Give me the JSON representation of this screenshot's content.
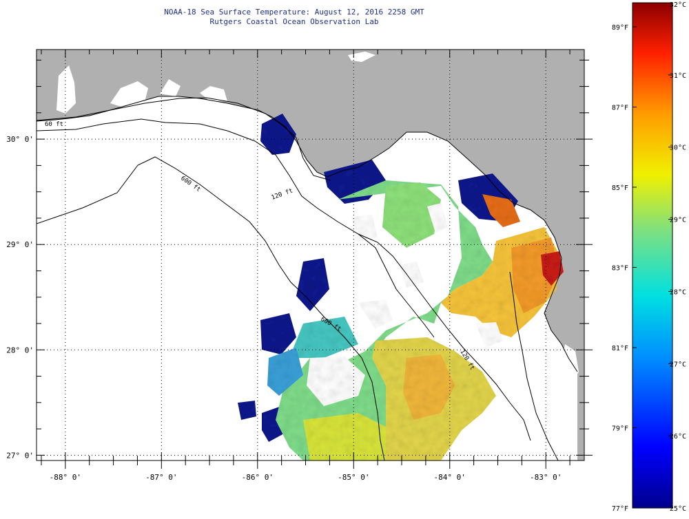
{
  "title": {
    "line1": "NOAA-18 Sea Surface Temperature:  August 12, 2016 2258 GMT",
    "line2": "Rutgers Coastal Ocean Observation Lab"
  },
  "colors": {
    "land": "#b0b0b0",
    "no_data": "#ffffff",
    "grid": "#000000"
  },
  "map": {
    "lon_range": [
      -88.3,
      -82.6
    ],
    "lat_range": [
      26.95,
      30.85
    ],
    "lon_ticks": [
      {
        "value": -88,
        "label": "-88° 0'"
      },
      {
        "value": -87,
        "label": "-87° 0'"
      },
      {
        "value": -86,
        "label": "-86° 0'"
      },
      {
        "value": -85,
        "label": "-85° 0'"
      },
      {
        "value": -84,
        "label": "-84° 0'"
      },
      {
        "value": -83,
        "label": "-83° 0'"
      }
    ],
    "lat_ticks": [
      {
        "value": 30,
        "label": "30° 0'"
      },
      {
        "value": 29,
        "label": "29° 0'"
      },
      {
        "value": 28,
        "label": "28° 0'"
      },
      {
        "value": 27,
        "label": "27° 0'"
      }
    ],
    "contour_labels": [
      "60 ft",
      "120 ft",
      "600 ft",
      "600 ft",
      "120 ft"
    ]
  },
  "colorbar": {
    "celsius_range": [
      25,
      32
    ],
    "celsius_labels": [
      "32°C",
      "31°C",
      "30°C",
      "29°C",
      "28°C",
      "27°C",
      "26°C",
      "25°C"
    ],
    "fahrenheit_labels": [
      "89°F",
      "87°F",
      "85°F",
      "83°F",
      "81°F",
      "79°F",
      "77°F"
    ]
  }
}
